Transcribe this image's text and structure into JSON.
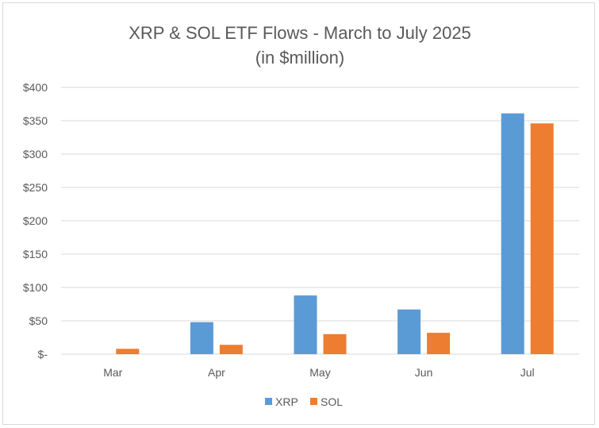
{
  "chart_data": {
    "type": "bar",
    "title": [
      "XRP & SOL ETF Flows - March to July 2025",
      "(in $million)"
    ],
    "categories": [
      "Mar",
      "Apr",
      "May",
      "Jun",
      "Jul"
    ],
    "series": [
      {
        "name": "XRP",
        "color": "#5b9bd5",
        "values": [
          0,
          48,
          88,
          67,
          361
        ]
      },
      {
        "name": "SOL",
        "color": "#ed7d31",
        "values": [
          8,
          14,
          30,
          32,
          346
        ]
      }
    ],
    "ylim": [
      0,
      400
    ],
    "yticks": [
      0,
      50,
      100,
      150,
      200,
      250,
      300,
      350,
      400
    ],
    "ytick_labels": [
      "$-",
      "$50",
      "$100",
      "$150",
      "$200",
      "$250",
      "$300",
      "$350",
      "$400"
    ],
    "grid": true,
    "legend": "bottom",
    "xlabel": "",
    "ylabel": ""
  }
}
